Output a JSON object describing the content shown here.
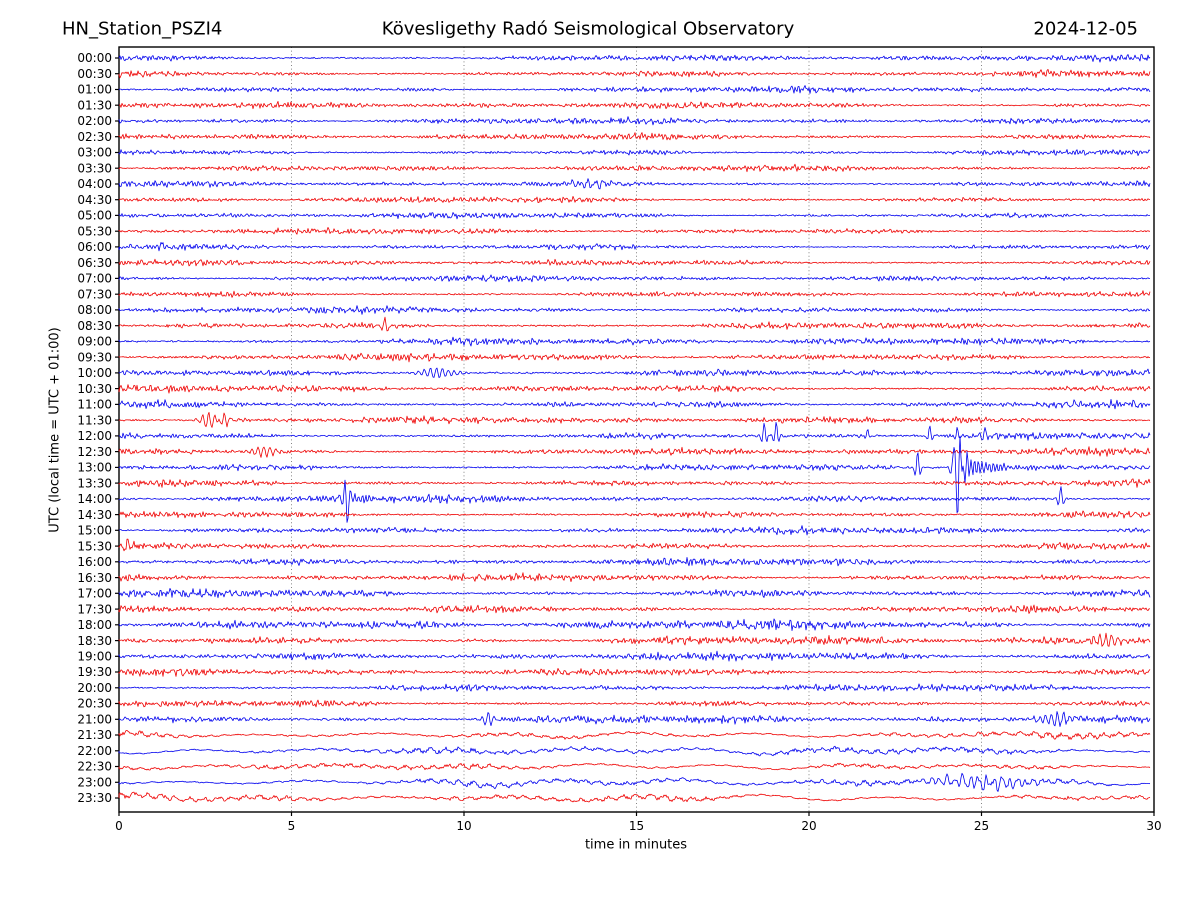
{
  "header": {
    "station": "HN_Station_PSZI4",
    "observatory": "Kövesligethy Radó Seismological Observatory",
    "date": "2024-12-05"
  },
  "axes": {
    "xlabel": "time in minutes",
    "ylabel": "UTC (local time = UTC + 01:00)",
    "x_ticks": [
      0,
      5,
      10,
      15,
      20,
      25,
      30
    ],
    "x_gridlines": [
      5,
      10,
      15,
      20,
      25
    ],
    "x_range": [
      0,
      30
    ]
  },
  "colors": {
    "trace_blue": "#0000ee",
    "trace_red": "#ee0000",
    "frame": "#000000",
    "grid": "#777777",
    "text": "#000000",
    "background": "#ffffff"
  },
  "chart_data": {
    "type": "line",
    "title": "HN_Station_PSZI4 — Kövesligethy Radó Seismological Observatory — 2024-12-05",
    "xlabel": "time in minutes",
    "ylabel": "UTC (local time = UTC + 01:00)",
    "minutes_per_row": 30,
    "grid": "vertical-dotted-every-5-min",
    "legend_position": "none",
    "rows": [
      {
        "t": "00:00",
        "c": "blue",
        "a": 2.8,
        "lf": 0,
        "ev": []
      },
      {
        "t": "00:30",
        "c": "red",
        "a": 2.8,
        "lf": 0,
        "ev": []
      },
      {
        "t": "01:00",
        "c": "blue",
        "a": 2.7,
        "lf": 0,
        "ev": []
      },
      {
        "t": "01:30",
        "c": "red",
        "a": 2.7,
        "lf": 0,
        "ev": []
      },
      {
        "t": "02:00",
        "c": "blue",
        "a": 2.6,
        "lf": 0,
        "ev": []
      },
      {
        "t": "02:30",
        "c": "red",
        "a": 2.6,
        "lf": 0,
        "ev": []
      },
      {
        "t": "03:00",
        "c": "blue",
        "a": 2.5,
        "lf": 0,
        "ev": []
      },
      {
        "t": "03:30",
        "c": "red",
        "a": 2.5,
        "lf": 0,
        "ev": []
      },
      {
        "t": "04:00",
        "c": "blue",
        "a": 2.6,
        "lf": 0,
        "ev": [
          {
            "m": 13.6,
            "a": 5,
            "w": 0.5
          }
        ]
      },
      {
        "t": "04:30",
        "c": "red",
        "a": 2.4,
        "lf": 0,
        "ev": []
      },
      {
        "t": "05:00",
        "c": "blue",
        "a": 2.5,
        "lf": 0,
        "ev": []
      },
      {
        "t": "05:30",
        "c": "red",
        "a": 2.4,
        "lf": 0,
        "ev": []
      },
      {
        "t": "06:00",
        "c": "blue",
        "a": 2.4,
        "lf": 0,
        "ev": [
          {
            "m": 1.25,
            "a": 6,
            "w": 0.06
          }
        ]
      },
      {
        "t": "06:30",
        "c": "red",
        "a": 2.4,
        "lf": 0,
        "ev": []
      },
      {
        "t": "07:00",
        "c": "blue",
        "a": 2.5,
        "lf": 0,
        "ev": []
      },
      {
        "t": "07:30",
        "c": "red",
        "a": 2.5,
        "lf": 0,
        "ev": []
      },
      {
        "t": "08:00",
        "c": "blue",
        "a": 2.9,
        "lf": 0,
        "ev": []
      },
      {
        "t": "08:30",
        "c": "red",
        "a": 3.0,
        "lf": 0,
        "ev": [
          {
            "m": 7.7,
            "a": 6,
            "w": 0.1
          }
        ]
      },
      {
        "t": "09:00",
        "c": "blue",
        "a": 3.0,
        "lf": 0,
        "ev": []
      },
      {
        "t": "09:30",
        "c": "red",
        "a": 3.0,
        "lf": 0,
        "ev": []
      },
      {
        "t": "10:00",
        "c": "blue",
        "a": 3.2,
        "lf": 0,
        "ev": [
          {
            "m": 9.2,
            "a": 5,
            "w": 0.4
          }
        ]
      },
      {
        "t": "10:30",
        "c": "red",
        "a": 3.0,
        "lf": 0,
        "ev": []
      },
      {
        "t": "11:00",
        "c": "blue",
        "a": 3.2,
        "lf": 0,
        "ev": []
      },
      {
        "t": "11:30",
        "c": "red",
        "a": 3.0,
        "lf": 0,
        "ev": [
          {
            "m": 2.6,
            "a": 8,
            "w": 0.18
          },
          {
            "m": 3.05,
            "a": 7,
            "w": 0.1
          }
        ]
      },
      {
        "t": "12:00",
        "c": "blue",
        "a": 3.0,
        "lf": 0,
        "ev": [
          {
            "m": 18.7,
            "a": 13,
            "w": 0.06
          },
          {
            "m": 19.05,
            "a": 15,
            "w": 0.06
          },
          {
            "m": 21.7,
            "a": 6,
            "w": 0.06
          },
          {
            "m": 23.5,
            "a": 10,
            "w": 0.06
          },
          {
            "m": 24.3,
            "a": 8,
            "w": 0.06
          },
          {
            "m": 25.1,
            "a": 9,
            "w": 0.06
          }
        ]
      },
      {
        "t": "12:30",
        "c": "red",
        "a": 3.0,
        "lf": 0,
        "ev": [
          {
            "m": 4.2,
            "a": 6,
            "w": 0.25
          }
        ]
      },
      {
        "t": "13:00",
        "c": "blue",
        "a": 3.0,
        "lf": 0,
        "ev": [
          {
            "m": 23.15,
            "a": 16,
            "w": 0.07
          },
          {
            "m": 24.18,
            "a": 12,
            "w": 0.08
          },
          {
            "m": 24.3,
            "a": 46,
            "w": 0.06,
            "dn": true,
            "coda": 1.1
          },
          {
            "m": 24.5,
            "a": 13,
            "w": 0.08,
            "dn": true
          }
        ]
      },
      {
        "t": "13:30",
        "c": "red",
        "a": 3.0,
        "lf": 0,
        "ev": []
      },
      {
        "t": "14:00",
        "c": "blue",
        "a": 3.0,
        "lf": 0,
        "ev": [
          {
            "m": 6.55,
            "a": 10,
            "w": 0.08
          },
          {
            "m": 6.62,
            "a": 24,
            "w": 0.06,
            "dn": true,
            "coda": 0.45
          },
          {
            "m": 27.3,
            "a": 12,
            "w": 0.07
          }
        ]
      },
      {
        "t": "14:30",
        "c": "red",
        "a": 2.9,
        "lf": 0,
        "ev": []
      },
      {
        "t": "15:00",
        "c": "blue",
        "a": 3.0,
        "lf": 0,
        "ev": []
      },
      {
        "t": "15:30",
        "c": "red",
        "a": 3.0,
        "lf": 0,
        "ev": [
          {
            "m": 0.25,
            "a": 6,
            "w": 0.1
          }
        ]
      },
      {
        "t": "16:00",
        "c": "blue",
        "a": 3.0,
        "lf": 0,
        "ev": []
      },
      {
        "t": "16:30",
        "c": "red",
        "a": 3.0,
        "lf": 0,
        "ev": []
      },
      {
        "t": "17:00",
        "c": "blue",
        "a": 3.8,
        "lf": 0,
        "ev": []
      },
      {
        "t": "17:30",
        "c": "red",
        "a": 3.6,
        "lf": 0,
        "ev": []
      },
      {
        "t": "18:00",
        "c": "blue",
        "a": 4.0,
        "lf": 0,
        "ev": []
      },
      {
        "t": "18:30",
        "c": "red",
        "a": 3.8,
        "lf": 0,
        "ev": [
          {
            "m": 28.6,
            "a": 6,
            "w": 0.3
          }
        ]
      },
      {
        "t": "19:00",
        "c": "blue",
        "a": 3.4,
        "lf": 0,
        "ev": []
      },
      {
        "t": "19:30",
        "c": "red",
        "a": 3.0,
        "lf": 0,
        "ev": []
      },
      {
        "t": "20:00",
        "c": "blue",
        "a": 3.0,
        "lf": 0,
        "ev": []
      },
      {
        "t": "20:30",
        "c": "red",
        "a": 3.0,
        "lf": 0,
        "ev": []
      },
      {
        "t": "21:00",
        "c": "blue",
        "a": 3.3,
        "lf": 0,
        "ev": [
          {
            "m": 10.7,
            "a": 7,
            "w": 0.12
          },
          {
            "m": 27.2,
            "a": 6,
            "w": 0.4
          }
        ]
      },
      {
        "t": "21:30",
        "c": "red",
        "a": 3.3,
        "lf": 2.0,
        "ev": []
      },
      {
        "t": "22:00",
        "c": "blue",
        "a": 3.4,
        "lf": 2.3,
        "ev": []
      },
      {
        "t": "22:30",
        "c": "red",
        "a": 3.3,
        "lf": 2.0,
        "ev": []
      },
      {
        "t": "23:00",
        "c": "blue",
        "a": 3.4,
        "lf": 2.4,
        "ev": [
          {
            "m": 25.0,
            "a": 8,
            "w": 1.0
          }
        ]
      },
      {
        "t": "23:30",
        "c": "red",
        "a": 3.4,
        "lf": 2.2,
        "ev": []
      }
    ]
  }
}
